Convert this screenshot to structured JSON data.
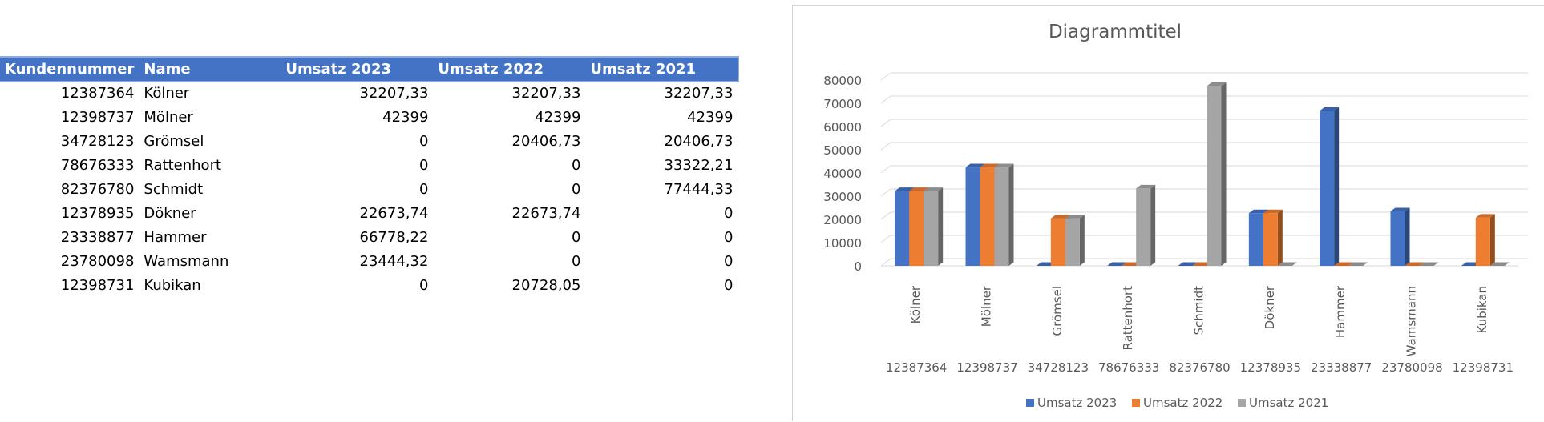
{
  "table": {
    "headers": [
      "Kundennummer",
      "Name",
      "Umsatz 2023",
      "Umsatz 2022",
      "Umsatz 2021"
    ],
    "rows": [
      [
        "12387364",
        "Kölner",
        "32207,33",
        "32207,33",
        "32207,33"
      ],
      [
        "12398737",
        "Mölner",
        "42399",
        "42399",
        "42399"
      ],
      [
        "34728123",
        "Grömsel",
        "0",
        "20406,73",
        "20406,73"
      ],
      [
        "78676333",
        "Rattenhort",
        "0",
        "0",
        "33322,21"
      ],
      [
        "82376780",
        "Schmidt",
        "0",
        "0",
        "77444,33"
      ],
      [
        "12378935",
        "Dökner",
        "22673,74",
        "22673,74",
        "0"
      ],
      [
        "23338877",
        "Hammer",
        "66778,22",
        "0",
        "0"
      ],
      [
        "23780098",
        "Wamsmann",
        "23444,32",
        "0",
        "0"
      ],
      [
        "12398731",
        "Kubikan",
        "0",
        "20728,05",
        "0"
      ]
    ]
  },
  "chart_data": {
    "type": "bar",
    "subtype": "3d-clustered-column",
    "title": "Diagrammtitel",
    "categories": [
      "Kölner",
      "Mölner",
      "Grömsel",
      "Rattenhort",
      "Schmidt",
      "Dökner",
      "Hammer",
      "Wamsmann",
      "Kubikan"
    ],
    "category_groups": [
      "12387364",
      "12398737",
      "34728123",
      "78676333",
      "82376780",
      "12378935",
      "23338877",
      "23780098",
      "12398731"
    ],
    "series": [
      {
        "name": "Umsatz 2023",
        "color": "#4472C4",
        "values": [
          32207.33,
          42399,
          0,
          0,
          0,
          22673.74,
          66778.22,
          23444.32,
          0
        ]
      },
      {
        "name": "Umsatz 2022",
        "color": "#ED7D31",
        "values": [
          32207.33,
          42399,
          20406.73,
          0,
          0,
          22673.74,
          0,
          0,
          20728.05
        ]
      },
      {
        "name": "Umsatz 2021",
        "color": "#A5A5A5",
        "values": [
          32207.33,
          42399,
          20406.73,
          33322.21,
          77444.33,
          0,
          0,
          0,
          0
        ]
      }
    ],
    "ylim": [
      0,
      80000
    ],
    "yticks": [
      "0",
      "10000",
      "20000",
      "30000",
      "40000",
      "50000",
      "60000",
      "70000",
      "80000"
    ],
    "grid": true,
    "legend": "bottom"
  }
}
